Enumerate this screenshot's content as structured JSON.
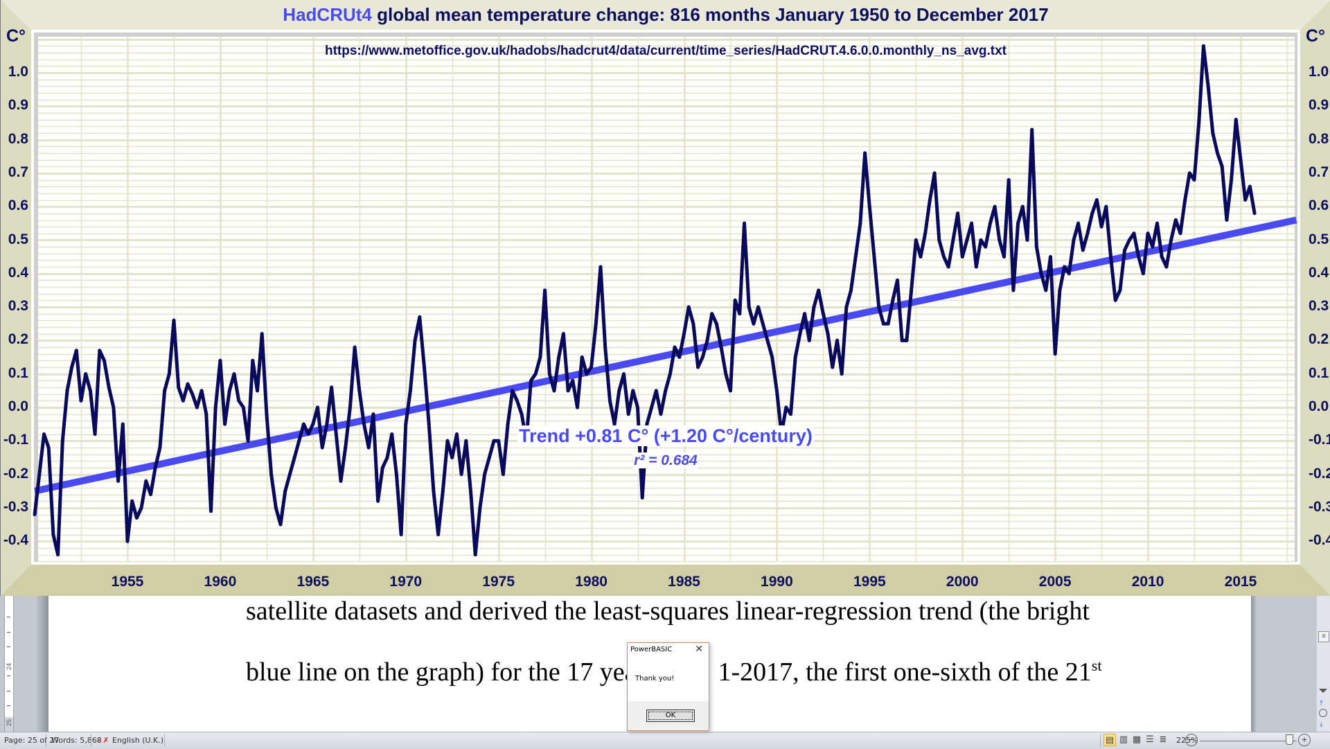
{
  "chart_window": {
    "title_accent": "HadCRUt4",
    "title_rest": " global mean temperature change: 816 months January 1950 to December 2017",
    "source_url": "https://www.metoffice.gov.uk/hadobs/hadcrut4/data/current/time_series/HadCRUT.4.6.0.0.monthly_ns_avg.txt",
    "y_unit_label": "C°",
    "trend_text": "Trend +0.81 C° (+1.20 C°/century)",
    "r2_text": "r² = 0.684"
  },
  "chart_data": {
    "type": "line",
    "title": "HadCRUt4 global mean temperature change: 816 months January 1950 to December 2017",
    "subtitle": "https://www.metoffice.gov.uk/hadobs/hadcrut4/data/current/time_series/HadCRUT.4.6.0.0.monthly_ns_avg.txt",
    "xlabel": "",
    "ylabel": "C°",
    "xlim": [
      1950,
      2018
    ],
    "ylim": [
      -0.46,
      1.1
    ],
    "x_ticks": [
      "1955",
      "1960",
      "1965",
      "1970",
      "1975",
      "1980",
      "1985",
      "1990",
      "1995",
      "2000",
      "2005",
      "2010",
      "2015"
    ],
    "y_ticks": [
      "1.0",
      "0.9",
      "0.8",
      "0.7",
      "0.6",
      "0.5",
      "0.4",
      "0.3",
      "0.2",
      "0.1",
      "0.0",
      "-0.1",
      "-0.2",
      "-0.3",
      "-0.4"
    ],
    "grid": true,
    "colors": {
      "series": "#0a0a5c",
      "trend": "#4a4af2",
      "grid": "#e3e3c8",
      "axis_text": "#0e0e5e"
    },
    "series": [
      {
        "name": "HadCRUT4 monthly anomaly (sampled quarterly)",
        "x_start": 1950.0,
        "x_step": 0.25,
        "values": [
          -0.32,
          -0.2,
          -0.08,
          -0.12,
          -0.38,
          -0.44,
          -0.1,
          0.05,
          0.12,
          0.17,
          0.02,
          0.1,
          0.05,
          -0.08,
          0.17,
          0.14,
          0.06,
          0.0,
          -0.22,
          -0.05,
          -0.4,
          -0.28,
          -0.33,
          -0.3,
          -0.22,
          -0.26,
          -0.18,
          -0.12,
          0.05,
          0.1,
          0.26,
          0.06,
          0.02,
          0.07,
          0.04,
          0.0,
          0.05,
          -0.02,
          -0.31,
          0.0,
          0.14,
          -0.05,
          0.05,
          0.1,
          0.02,
          0.0,
          -0.1,
          0.14,
          0.05,
          0.22,
          -0.02,
          -0.2,
          -0.3,
          -0.35,
          -0.25,
          -0.2,
          -0.15,
          -0.1,
          -0.05,
          -0.08,
          -0.05,
          0.0,
          -0.12,
          -0.05,
          0.06,
          -0.08,
          -0.22,
          -0.12,
          0.0,
          0.18,
          0.05,
          -0.05,
          -0.12,
          -0.02,
          -0.28,
          -0.18,
          -0.15,
          -0.08,
          -0.2,
          -0.38,
          -0.05,
          0.05,
          0.2,
          0.27,
          0.12,
          -0.05,
          -0.25,
          -0.38,
          -0.25,
          -0.1,
          -0.15,
          -0.08,
          -0.2,
          -0.1,
          -0.25,
          -0.44,
          -0.3,
          -0.2,
          -0.15,
          -0.1,
          -0.1,
          -0.2,
          -0.05,
          0.05,
          0.02,
          -0.02,
          -0.1,
          0.08,
          0.1,
          0.15,
          0.35,
          0.1,
          0.05,
          0.15,
          0.22,
          0.05,
          0.08,
          0.0,
          0.15,
          0.1,
          0.12,
          0.25,
          0.42,
          0.18,
          0.02,
          -0.05,
          0.05,
          0.1,
          -0.02,
          0.05,
          0.0,
          -0.27,
          -0.05,
          0.0,
          0.05,
          -0.02,
          0.05,
          0.1,
          0.18,
          0.15,
          0.22,
          0.3,
          0.25,
          0.12,
          0.15,
          0.2,
          0.28,
          0.25,
          0.18,
          0.1,
          0.05,
          0.32,
          0.28,
          0.55,
          0.3,
          0.25,
          0.3,
          0.25,
          0.2,
          0.15,
          0.05,
          -0.08,
          0.0,
          -0.02,
          0.15,
          0.22,
          0.28,
          0.2,
          0.3,
          0.35,
          0.28,
          0.22,
          0.12,
          0.2,
          0.1,
          0.3,
          0.35,
          0.45,
          0.55,
          0.76,
          0.6,
          0.45,
          0.3,
          0.25,
          0.25,
          0.32,
          0.38,
          0.2,
          0.2,
          0.35,
          0.5,
          0.45,
          0.52,
          0.62,
          0.7,
          0.5,
          0.45,
          0.42,
          0.5,
          0.58,
          0.45,
          0.5,
          0.55,
          0.42,
          0.5,
          0.48,
          0.55,
          0.6,
          0.5,
          0.45,
          0.68,
          0.35,
          0.55,
          0.6,
          0.5,
          0.83,
          0.48,
          0.4,
          0.35,
          0.45,
          0.16,
          0.35,
          0.42,
          0.4,
          0.5,
          0.55,
          0.47,
          0.52,
          0.58,
          0.62,
          0.54,
          0.6,
          0.45,
          0.32,
          0.35,
          0.47,
          0.5,
          0.52,
          0.45,
          0.4,
          0.52,
          0.48,
          0.55,
          0.45,
          0.42,
          0.5,
          0.56,
          0.52,
          0.62,
          0.7,
          0.68,
          0.85,
          1.08,
          0.96,
          0.82,
          0.76,
          0.72,
          0.56,
          0.68,
          0.86,
          0.74,
          0.62,
          0.66,
          0.58
        ]
      },
      {
        "name": "Least-squares linear trend",
        "x": [
          1950.0,
          2018.0
        ],
        "values": [
          -0.25,
          0.56
        ]
      }
    ],
    "annotations": [
      "Trend +0.81 C° (+1.20 C°/century)",
      "r² = 0.684"
    ]
  },
  "document": {
    "line1": "satellite datasets and derived the least-squares linear-regression trend (the bright",
    "line2_before": "blue line on the graph) for the 17 yea",
    "line2_after": "1-2017, the first one-sixth of the 21",
    "line2_sup": "st",
    "ruler_numbers": [
      "24",
      "25"
    ]
  },
  "dialog": {
    "title": "PowerBASIC",
    "close_glyph": "✕",
    "message": "Thank you!",
    "ok_label": "OK"
  },
  "statusbar": {
    "page": "Page: 25 of 27",
    "words": "Words: 5,868",
    "proofing_icon": "spellcheck-icon",
    "language": "English (U.K.)",
    "zoom_level": "225%",
    "zoom_minus": "−",
    "zoom_plus": "+",
    "view_icons": [
      "print-layout-icon",
      "full-screen-reading-icon",
      "web-layout-icon",
      "outline-icon",
      "draft-icon"
    ]
  }
}
